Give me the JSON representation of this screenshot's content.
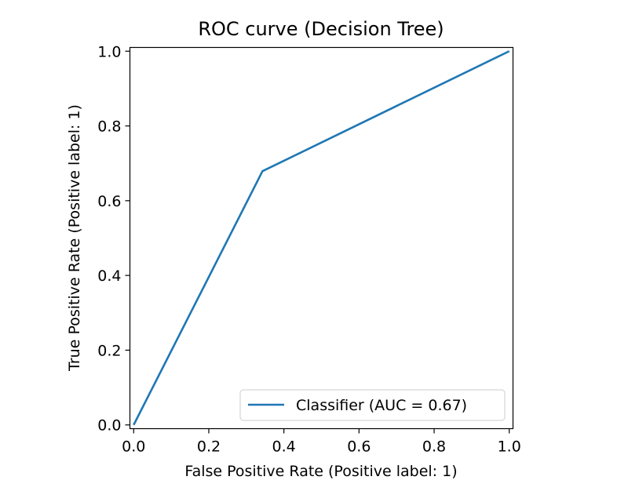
{
  "chart_data": {
    "type": "line",
    "title": "ROC curve (Decision Tree)",
    "xlabel": "False Positive Rate (Positive label: 1)",
    "ylabel": "True Positive Rate (Positive label: 1)",
    "xlim": [
      -0.01,
      1.01
    ],
    "ylim": [
      -0.01,
      1.01
    ],
    "xticks": [
      "0.0",
      "0.2",
      "0.4",
      "0.6",
      "0.8",
      "1.0"
    ],
    "yticks": [
      "0.0",
      "0.2",
      "0.4",
      "0.6",
      "0.8",
      "1.0"
    ],
    "grid": false,
    "legend_position": "lower-right",
    "series": [
      {
        "name": "Classifier (AUC = 0.67)",
        "color": "#1f77b4",
        "x": [
          0.0,
          0.343,
          1.0
        ],
        "y": [
          0.0,
          0.679,
          1.0
        ]
      }
    ]
  }
}
